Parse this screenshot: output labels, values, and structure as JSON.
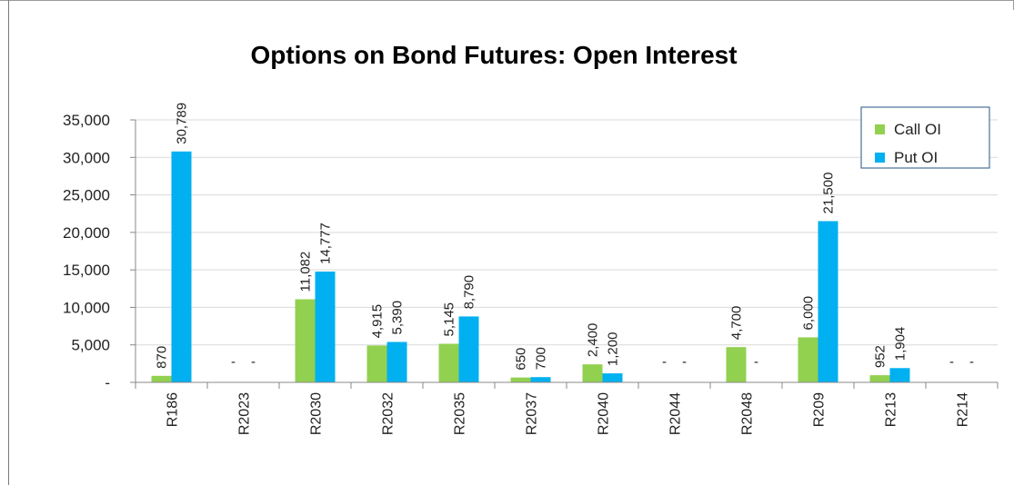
{
  "chart_data": {
    "type": "bar",
    "title": "Options on Bond Futures: Open Interest",
    "xlabel": "",
    "ylabel": "",
    "categories": [
      "R186",
      "R2023",
      "R2030",
      "R2032",
      "R2035",
      "R2037",
      "R2040",
      "R2044",
      "R2048",
      "R209",
      "R213",
      "R214"
    ],
    "series": [
      {
        "name": "Call OI",
        "color": "#92d050",
        "values": [
          870,
          0,
          11082,
          4915,
          5145,
          650,
          2400,
          0,
          4700,
          6000,
          952,
          0
        ],
        "labels": [
          "870",
          "-",
          "11,082",
          "4,915",
          "5,145",
          "650",
          "2,400",
          "-",
          "4,700",
          "6,000",
          "952",
          "-"
        ]
      },
      {
        "name": "Put OI",
        "color": "#00b0f0",
        "values": [
          30789,
          0,
          14777,
          5390,
          8790,
          700,
          1200,
          0,
          0,
          21500,
          1904,
          0
        ],
        "labels": [
          "30,789",
          "-",
          "14,777",
          "5,390",
          "8,790",
          "700",
          "1,200",
          "-",
          "-",
          "21,500",
          "1,904",
          "-"
        ]
      }
    ],
    "ylim": [
      0,
      35000
    ],
    "yticks": [
      0,
      5000,
      10000,
      15000,
      20000,
      25000,
      30000,
      35000
    ],
    "ytick_labels": [
      "-",
      "5,000",
      "10,000",
      "15,000",
      "20,000",
      "25,000",
      "30,000",
      "35,000"
    ],
    "grid": true,
    "legend_position": "top-right"
  }
}
